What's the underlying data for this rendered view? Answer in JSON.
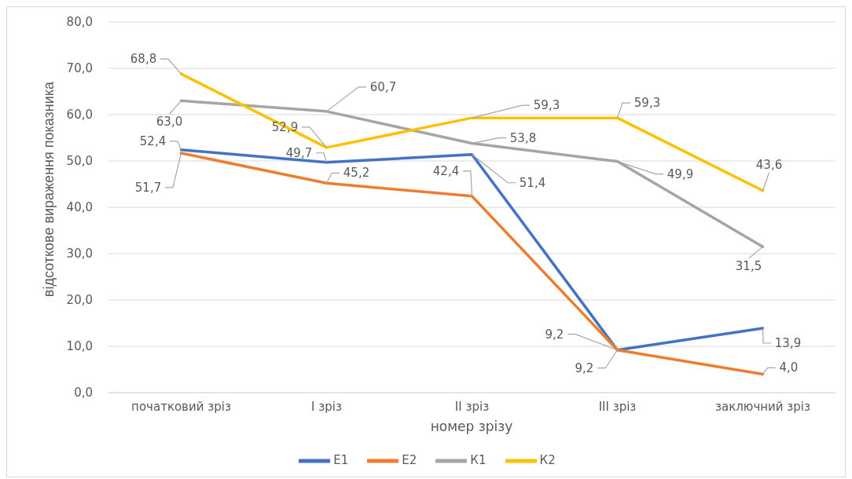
{
  "chart_data": {
    "type": "line",
    "xlabel": "номер зрізу",
    "ylabel": "відсоткове вираження показника",
    "categories": [
      "початковий зріз",
      "I зріз",
      "II зріз",
      "III зріз",
      "заключний зріз"
    ],
    "series": [
      {
        "name": "Е1",
        "color": "#4472c4",
        "values": [
          52.4,
          49.7,
          51.4,
          9.2,
          13.9
        ],
        "value_labels": [
          "52,4",
          "49,7",
          "51,4",
          "9,2",
          "13,9"
        ]
      },
      {
        "name": "Е2",
        "color": "#ed7d31",
        "values": [
          51.7,
          45.2,
          42.4,
          9.2,
          4.0
        ],
        "value_labels": [
          "51,7",
          "45,2",
          "42,4",
          "9,2",
          "4,0"
        ]
      },
      {
        "name": "К1",
        "color": "#a5a5a5",
        "values": [
          63.0,
          60.7,
          53.8,
          49.9,
          31.5
        ],
        "value_labels": [
          "63,0",
          "60,7",
          "53,8",
          "49,9",
          "31,5"
        ]
      },
      {
        "name": "К2",
        "color": "#ffc000",
        "values": [
          68.8,
          52.9,
          59.3,
          59.3,
          43.6
        ],
        "value_labels": [
          "68,8",
          "52,9",
          "59,3",
          "59,3",
          "43,6"
        ]
      }
    ],
    "ylim": [
      0,
      80
    ],
    "yticks": [
      {
        "value": 0,
        "label": "0,0"
      },
      {
        "value": 10,
        "label": "10,0"
      },
      {
        "value": 20,
        "label": "20,0"
      },
      {
        "value": 30,
        "label": "30,0"
      },
      {
        "value": 40,
        "label": "40,0"
      },
      {
        "value": 50,
        "label": "50,0"
      },
      {
        "value": 60,
        "label": "60,0"
      },
      {
        "value": 70,
        "label": "70,0"
      },
      {
        "value": 80,
        "label": "80,0"
      }
    ],
    "grid": "y",
    "legend": "bottom",
    "marker": "none",
    "line_style": "solid"
  }
}
